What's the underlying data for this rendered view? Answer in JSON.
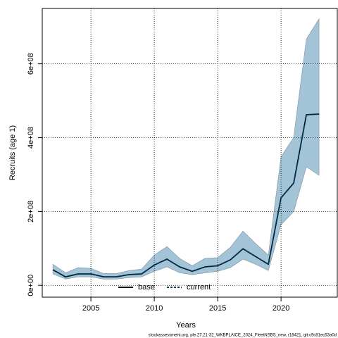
{
  "chart_data": {
    "type": "line",
    "x_label": "Years",
    "y_label": "Recruits (age 1)",
    "footer": "stockassessment.org, ple.27.21-32_WKBPLAICE_2024_FleetNSBS_new, r18421, git:c9c81ec53a0d",
    "x": [
      2002,
      2003,
      2004,
      2005,
      2006,
      2007,
      2008,
      2009,
      2010,
      2011,
      2012,
      2013,
      2014,
      2015,
      2016,
      2017,
      2018,
      2019,
      2020,
      2021,
      2022,
      2023
    ],
    "series": [
      {
        "name": "base",
        "color": "#000000",
        "values": [
          42000000,
          23000000,
          31000000,
          31000000,
          23000000,
          23000000,
          29000000,
          31000000,
          55000000,
          71000000,
          50000000,
          38000000,
          50000000,
          53000000,
          69000000,
          99000000,
          78000000,
          57000000,
          237000000,
          277000000,
          462000000,
          464000000
        ]
      },
      {
        "name": "current",
        "color": "#003f66",
        "values": [
          42000000,
          23000000,
          31000000,
          31000000,
          23000000,
          23000000,
          29000000,
          31000000,
          55000000,
          71000000,
          50000000,
          38000000,
          50000000,
          53000000,
          69000000,
          99000000,
          78000000,
          57000000,
          237000000,
          277000000,
          462000000,
          464000000
        ]
      }
    ],
    "band": {
      "color": "#a3c4d6",
      "lower": [
        31000000,
        17000000,
        23000000,
        23000000,
        17000000,
        17000000,
        21000000,
        23000000,
        38000000,
        50000000,
        34000000,
        29000000,
        34000000,
        38000000,
        48000000,
        71000000,
        57000000,
        40000000,
        164000000,
        200000000,
        321000000,
        298000000
      ],
      "upper": [
        57000000,
        34000000,
        48000000,
        46000000,
        32000000,
        32000000,
        40000000,
        44000000,
        82000000,
        105000000,
        73000000,
        53000000,
        73000000,
        75000000,
        103000000,
        147000000,
        113000000,
        82000000,
        348000000,
        401000000,
        667000000,
        722000000
      ]
    },
    "xlim": [
      2001.16,
      2024.44
    ],
    "ylim": [
      -32000000,
      750000000
    ],
    "xticks": [
      2005,
      2010,
      2015,
      2020
    ],
    "yticks": [
      {
        "value": 0,
        "label": "0e+00"
      },
      {
        "value": 200000000,
        "label": "2e+08"
      },
      {
        "value": 400000000,
        "label": "4e+08"
      },
      {
        "value": 600000000,
        "label": "6e+08"
      }
    ],
    "grid": true
  }
}
